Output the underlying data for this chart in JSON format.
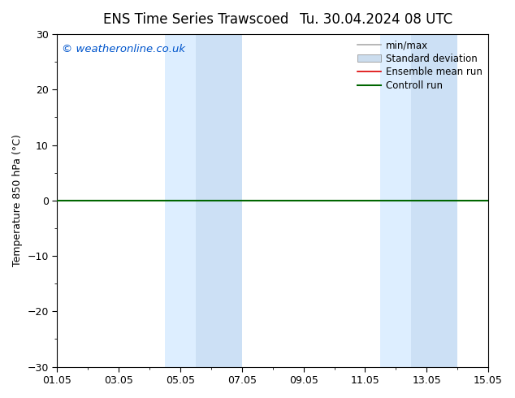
{
  "title_left": "ENS Time Series Trawscoed",
  "title_right": "Tu. 30.04.2024 08 UTC",
  "ylabel": "Temperature 850 hPa (°C)",
  "ylim": [
    -30,
    30
  ],
  "yticks": [
    -30,
    -20,
    -10,
    0,
    10,
    20,
    30
  ],
  "xtick_labels": [
    "01.05",
    "03.05",
    "05.05",
    "07.05",
    "09.05",
    "11.05",
    "13.05",
    "15.05"
  ],
  "xtick_positions": [
    0,
    2,
    4,
    6,
    8,
    10,
    12,
    14
  ],
  "xlim": [
    0,
    14
  ],
  "shaded_bands": [
    {
      "start": 3.5,
      "end": 4.5,
      "color": "#ddeeff"
    },
    {
      "start": 4.5,
      "end": 6.0,
      "color": "#cce0f5"
    },
    {
      "start": 10.5,
      "end": 11.5,
      "color": "#ddeeff"
    },
    {
      "start": 11.5,
      "end": 13.0,
      "color": "#cce0f5"
    }
  ],
  "hline_y": 0,
  "hline_color": "#006600",
  "hline_lw": 1.5,
  "copyright_text": "© weatheronline.co.uk",
  "copyright_color": "#0055cc",
  "legend_items": [
    {
      "label": "min/max",
      "color": "#aaaaaa",
      "lw": 1.2,
      "type": "line"
    },
    {
      "label": "Standard deviation",
      "color": "#ccddee",
      "type": "patch"
    },
    {
      "label": "Ensemble mean run",
      "color": "#dd0000",
      "lw": 1.2,
      "type": "line"
    },
    {
      "label": "Controll run",
      "color": "#006600",
      "lw": 1.5,
      "type": "line"
    }
  ],
  "background_color": "#ffffff",
  "axes_bg_color": "#ffffff",
  "title_fontsize": 12,
  "label_fontsize": 9,
  "tick_fontsize": 9,
  "legend_fontsize": 8.5
}
